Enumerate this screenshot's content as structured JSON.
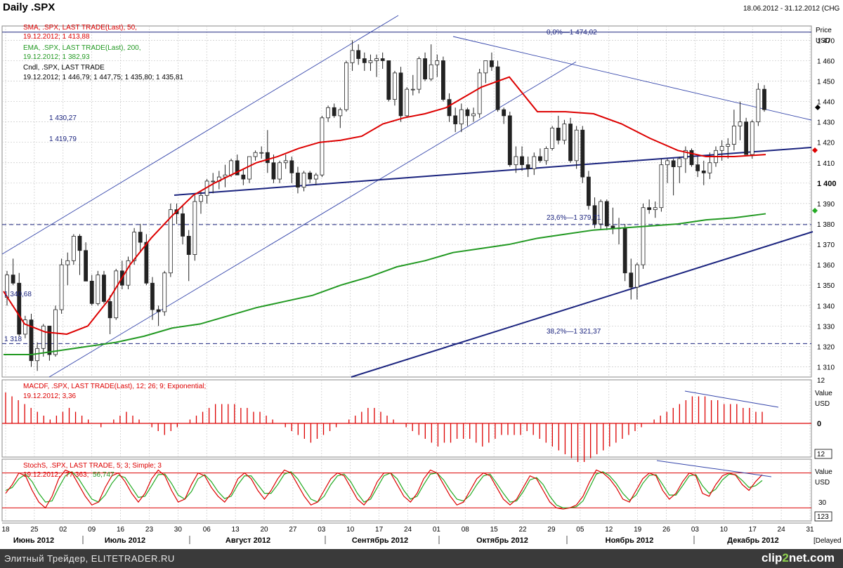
{
  "header": {
    "title": "Daily .SPX",
    "date_range": "18.06.2012 - 31.12.2012 (CHG",
    "price_label": "Price",
    "currency": "USD",
    "delayed": "[Delayed"
  },
  "legend": {
    "sma": {
      "name": "SMA, .SPX, LAST TRADE(Last), 50,",
      "values": "19.12.2012; 1 413,88"
    },
    "ema": {
      "name": "EMA, .SPX, LAST TRADE(Last), 200,",
      "values": "19.12.2012; 1 382,93"
    },
    "cndl": {
      "name": "Cndl, .SPX, LAST TRADE",
      "values": "19.12.2012; 1 446,79; 1 447,75; 1 435,80; 1 435,81"
    }
  },
  "levels": {
    "fib0": "0,0%—1 474,02",
    "fib236": "23,6%—1 379,71",
    "fib382": "38,2%—1 321,37",
    "l1430": "1 430,27",
    "l1419": "1 419,79",
    "l1340": "1 340,68",
    "l1318": "1 318"
  },
  "macd_legend": {
    "name": "MACDF, .SPX, LAST TRADE(Last), 12; 26; 9; Exponential;",
    "values": "19.12.2012; 3,36"
  },
  "stoch_legend": {
    "name": "StochS, .SPX, LAST TRADE, 5; 3; Simple; 3",
    "date": "19.12.2012;",
    "v1": "77,363;",
    "v2": "56,747"
  },
  "macd_axis": {
    "value": "Value",
    "usd": "USD",
    "zero": "0",
    "top": "12",
    "bottom": "12"
  },
  "stoch_axis": {
    "value": "Value",
    "usd": "USD",
    "t30": "30",
    "bottom": "123"
  },
  "footer": {
    "left": "Элитный Трейдер, ELITETRADER.RU",
    "logo_a": "clip",
    "logo_b": "2",
    "logo_c": "net.com"
  },
  "colors": {
    "sma": "#dd0000",
    "ema": "#229922",
    "trend": "#1a237e",
    "channel": "#3344aa",
    "bg": "#ffffff",
    "grid": "#c8c8c8"
  },
  "chart_data": {
    "type": "candlestick",
    "y_ticks": [
      1310,
      1320,
      1330,
      1340,
      1350,
      1360,
      1370,
      1380,
      1390,
      1400,
      1410,
      1420,
      1430,
      1440,
      1450,
      1460,
      1470
    ],
    "ylim": [
      1305,
      1477
    ],
    "x_day_ticks": [
      "18",
      "25",
      "02",
      "09",
      "16",
      "23",
      "30",
      "06",
      "13",
      "20",
      "27",
      "03",
      "10",
      "17",
      "24",
      "01",
      "08",
      "15",
      "22",
      "29",
      "05",
      "12",
      "19",
      "26",
      "03",
      "10",
      "17",
      "24",
      "31"
    ],
    "months": [
      "Июнь 2012",
      "Июль 2012",
      "Август 2012",
      "Сентябрь 2012",
      "Октябрь 2012",
      "Ноябрь 2012",
      "Декабрь 2012"
    ],
    "candles": [
      [
        1344,
        1357,
        1340,
        1355
      ],
      [
        1355,
        1363,
        1350,
        1351
      ],
      [
        1351,
        1356,
        1325,
        1326
      ],
      [
        1326,
        1335,
        1324,
        1333
      ],
      [
        1333,
        1336,
        1310,
        1313
      ],
      [
        1313,
        1322,
        1308,
        1319
      ],
      [
        1319,
        1331,
        1315,
        1330
      ],
      [
        1330,
        1330,
        1313,
        1316
      ],
      [
        1316,
        1340,
        1315,
        1338
      ],
      [
        1338,
        1363,
        1336,
        1360
      ],
      [
        1360,
        1366,
        1350,
        1362
      ],
      [
        1362,
        1375,
        1360,
        1374
      ],
      [
        1374,
        1375,
        1355,
        1367
      ],
      [
        1367,
        1371,
        1352,
        1352
      ],
      [
        1352,
        1355,
        1340,
        1341
      ],
      [
        1341,
        1357,
        1340,
        1355
      ],
      [
        1355,
        1357,
        1341,
        1342
      ],
      [
        1342,
        1345,
        1326,
        1334
      ],
      [
        1334,
        1358,
        1333,
        1357
      ],
      [
        1357,
        1362,
        1348,
        1350
      ],
      [
        1350,
        1364,
        1348,
        1362
      ],
      [
        1362,
        1378,
        1360,
        1376
      ],
      [
        1376,
        1380,
        1366,
        1371
      ],
      [
        1371,
        1375,
        1350,
        1351
      ],
      [
        1351,
        1354,
        1333,
        1338
      ],
      [
        1338,
        1340,
        1330,
        1337
      ],
      [
        1337,
        1357,
        1335,
        1356
      ],
      [
        1356,
        1390,
        1354,
        1387
      ],
      [
        1387,
        1390,
        1380,
        1385
      ],
      [
        1385,
        1389,
        1370,
        1374
      ],
      [
        1374,
        1377,
        1352,
        1365
      ],
      [
        1365,
        1394,
        1362,
        1391
      ],
      [
        1391,
        1396,
        1385,
        1394
      ],
      [
        1394,
        1402,
        1390,
        1401
      ],
      [
        1401,
        1405,
        1395,
        1401
      ],
      [
        1401,
        1406,
        1397,
        1403
      ],
      [
        1403,
        1409,
        1398,
        1404
      ],
      [
        1404,
        1412,
        1403,
        1411
      ],
      [
        1411,
        1414,
        1404,
        1404
      ],
      [
        1404,
        1407,
        1399,
        1402
      ],
      [
        1402,
        1413,
        1400,
        1413
      ],
      [
        1413,
        1416,
        1411,
        1415
      ],
      [
        1415,
        1418,
        1412,
        1415
      ],
      [
        1415,
        1426,
        1405,
        1410
      ],
      [
        1410,
        1414,
        1400,
        1402
      ],
      [
        1402,
        1411,
        1400,
        1410
      ],
      [
        1410,
        1414,
        1407,
        1411
      ],
      [
        1411,
        1413,
        1400,
        1405
      ],
      [
        1405,
        1408,
        1395,
        1398
      ],
      [
        1398,
        1406,
        1396,
        1405
      ],
      [
        1405,
        1406,
        1400,
        1402
      ],
      [
        1402,
        1405,
        1399,
        1404
      ],
      [
        1404,
        1433,
        1403,
        1432
      ],
      [
        1432,
        1438,
        1430,
        1437
      ],
      [
        1437,
        1439,
        1432,
        1433
      ],
      [
        1433,
        1437,
        1427,
        1436
      ],
      [
        1436,
        1460,
        1435,
        1459
      ],
      [
        1459,
        1470,
        1455,
        1465
      ],
      [
        1465,
        1468,
        1458,
        1461
      ],
      [
        1461,
        1464,
        1455,
        1459
      ],
      [
        1459,
        1463,
        1455,
        1460
      ],
      [
        1460,
        1463,
        1452,
        1461
      ],
      [
        1461,
        1464,
        1456,
        1460
      ],
      [
        1460,
        1460,
        1440,
        1441
      ],
      [
        1441,
        1455,
        1438,
        1454
      ],
      [
        1454,
        1457,
        1430,
        1433
      ],
      [
        1433,
        1447,
        1432,
        1446
      ],
      [
        1446,
        1453,
        1443,
        1446
      ],
      [
        1446,
        1462,
        1444,
        1461
      ],
      [
        1461,
        1464,
        1450,
        1451
      ],
      [
        1451,
        1468,
        1450,
        1458
      ],
      [
        1458,
        1463,
        1452,
        1460
      ],
      [
        1460,
        1462,
        1440,
        1441
      ],
      [
        1441,
        1444,
        1430,
        1433
      ],
      [
        1433,
        1437,
        1425,
        1429
      ],
      [
        1429,
        1439,
        1425,
        1436
      ],
      [
        1436,
        1437,
        1428,
        1433
      ],
      [
        1433,
        1437,
        1430,
        1434
      ],
      [
        1434,
        1456,
        1432,
        1454
      ],
      [
        1454,
        1460,
        1449,
        1460
      ],
      [
        1460,
        1464,
        1455,
        1457
      ],
      [
        1457,
        1460,
        1435,
        1436
      ],
      [
        1436,
        1437,
        1429,
        1433
      ],
      [
        1433,
        1435,
        1408,
        1409
      ],
      [
        1409,
        1418,
        1405,
        1413
      ],
      [
        1413,
        1418,
        1406,
        1409
      ],
      [
        1409,
        1413,
        1403,
        1407
      ],
      [
        1407,
        1415,
        1404,
        1413
      ],
      [
        1413,
        1417,
        1410,
        1411
      ],
      [
        1411,
        1418,
        1409,
        1417
      ],
      [
        1417,
        1428,
        1416,
        1427
      ],
      [
        1427,
        1433,
        1419,
        1421
      ],
      [
        1421,
        1431,
        1419,
        1429
      ],
      [
        1429,
        1432,
        1410,
        1411
      ],
      [
        1411,
        1428,
        1407,
        1426
      ],
      [
        1426,
        1428,
        1400,
        1403
      ],
      [
        1403,
        1406,
        1387,
        1389
      ],
      [
        1389,
        1393,
        1378,
        1380
      ],
      [
        1380,
        1392,
        1377,
        1391
      ],
      [
        1391,
        1392,
        1377,
        1379
      ],
      [
        1379,
        1388,
        1375,
        1378
      ],
      [
        1378,
        1383,
        1370,
        1378
      ],
      [
        1378,
        1380,
        1352,
        1356
      ],
      [
        1356,
        1363,
        1343,
        1349
      ],
      [
        1349,
        1361,
        1343,
        1360
      ],
      [
        1360,
        1390,
        1358,
        1388
      ],
      [
        1388,
        1392,
        1385,
        1387
      ],
      [
        1387,
        1391,
        1383,
        1388
      ],
      [
        1388,
        1412,
        1386,
        1409
      ],
      [
        1409,
        1412,
        1400,
        1411
      ],
      [
        1411,
        1412,
        1394,
        1408
      ],
      [
        1408,
        1413,
        1400,
        1412
      ],
      [
        1412,
        1418,
        1405,
        1416
      ],
      [
        1416,
        1417,
        1408,
        1409
      ],
      [
        1409,
        1413,
        1403,
        1406
      ],
      [
        1406,
        1411,
        1399,
        1405
      ],
      [
        1405,
        1415,
        1402,
        1410
      ],
      [
        1410,
        1418,
        1408,
        1416
      ],
      [
        1416,
        1421,
        1411,
        1418
      ],
      [
        1418,
        1422,
        1412,
        1419
      ],
      [
        1419,
        1436,
        1416,
        1428
      ],
      [
        1428,
        1440,
        1421,
        1430
      ],
      [
        1430,
        1432,
        1414,
        1414
      ],
      [
        1414,
        1431,
        1412,
        1430
      ],
      [
        1430,
        1449,
        1428,
        1446
      ],
      [
        1446,
        1448,
        1435,
        1436
      ]
    ],
    "sma50": [
      [
        0,
        1347
      ],
      [
        30,
        1331
      ],
      [
        60,
        1327
      ],
      [
        90,
        1326
      ],
      [
        120,
        1330
      ],
      [
        150,
        1343
      ],
      [
        180,
        1360
      ],
      [
        210,
        1373
      ],
      [
        240,
        1384
      ],
      [
        270,
        1394
      ],
      [
        300,
        1400
      ],
      [
        330,
        1405
      ],
      [
        360,
        1410
      ],
      [
        390,
        1413
      ],
      [
        420,
        1417
      ],
      [
        450,
        1420
      ],
      [
        480,
        1421
      ],
      [
        510,
        1423
      ],
      [
        540,
        1429
      ],
      [
        570,
        1432
      ],
      [
        600,
        1434
      ],
      [
        630,
        1437
      ],
      [
        650,
        1441
      ],
      [
        680,
        1447
      ],
      [
        720,
        1452
      ],
      [
        760,
        1435
      ],
      [
        800,
        1435
      ],
      [
        840,
        1434
      ],
      [
        880,
        1429
      ],
      [
        920,
        1422
      ],
      [
        960,
        1416
      ],
      [
        1000,
        1413
      ],
      [
        1040,
        1413
      ],
      [
        1085,
        1414
      ]
    ],
    "ema200": [
      [
        0,
        1316
      ],
      [
        40,
        1316
      ],
      [
        80,
        1318
      ],
      [
        120,
        1320
      ],
      [
        160,
        1322
      ],
      [
        200,
        1325
      ],
      [
        240,
        1329
      ],
      [
        280,
        1331
      ],
      [
        320,
        1335
      ],
      [
        360,
        1339
      ],
      [
        400,
        1342
      ],
      [
        440,
        1345
      ],
      [
        480,
        1350
      ],
      [
        520,
        1354
      ],
      [
        560,
        1359
      ],
      [
        600,
        1362
      ],
      [
        640,
        1366
      ],
      [
        680,
        1368
      ],
      [
        720,
        1370
      ],
      [
        760,
        1373
      ],
      [
        800,
        1375
      ],
      [
        840,
        1377
      ],
      [
        880,
        1378
      ],
      [
        920,
        1379
      ],
      [
        960,
        1380
      ],
      [
        1000,
        1382
      ],
      [
        1040,
        1383
      ],
      [
        1085,
        1385
      ]
    ],
    "macd_values": [
      8,
      7,
      6,
      5,
      4,
      3,
      2,
      1,
      2,
      3,
      4,
      3,
      2,
      1,
      0,
      -1,
      0,
      1,
      2,
      3,
      2,
      1,
      0,
      -1,
      -2,
      -3,
      -2,
      -1,
      0,
      1,
      2,
      3,
      4,
      5,
      5,
      5,
      5,
      4,
      4,
      3,
      3,
      2,
      1,
      0,
      -1,
      -2,
      -3,
      -4,
      -5,
      -4,
      -3,
      -2,
      -1,
      0,
      1,
      2,
      3,
      4,
      4,
      3,
      2,
      1,
      0,
      -1,
      -2,
      -3,
      -4,
      -5,
      -6,
      -5,
      -5,
      -4,
      -4,
      -4,
      -5,
      -6,
      -5,
      -4,
      -3,
      -3,
      -3,
      -3,
      -2,
      -3,
      -4,
      -5,
      -6,
      -7,
      -8,
      -9,
      -10,
      -10,
      -9,
      -8,
      -7,
      -6,
      -5,
      -4,
      -3,
      -2,
      -1,
      0,
      1,
      2,
      3,
      4,
      5,
      6,
      7,
      7,
      7,
      6,
      6,
      5,
      5,
      5,
      4,
      4,
      3,
      3
    ],
    "stoch_k": [
      45,
      60,
      80,
      75,
      50,
      30,
      20,
      40,
      70,
      85,
      80,
      60,
      40,
      25,
      30,
      55,
      75,
      80,
      65,
      45,
      30,
      45,
      70,
      85,
      75,
      50,
      30,
      35,
      60,
      80,
      75,
      55,
      40,
      30,
      45,
      70,
      80,
      70,
      50,
      35,
      50,
      70,
      85,
      80,
      60,
      40,
      25,
      30,
      50,
      70,
      80,
      75,
      55,
      35,
      25,
      40,
      65,
      80,
      80,
      60,
      40,
      30,
      45,
      70,
      85,
      80,
      60,
      40,
      25,
      30,
      50,
      70,
      80,
      75,
      55,
      35,
      25,
      35,
      55,
      75,
      70,
      50,
      30,
      20,
      18,
      20,
      25,
      40,
      65,
      85,
      80,
      70,
      55,
      35,
      30,
      50,
      70,
      80,
      75,
      50,
      35,
      45,
      65,
      80,
      75,
      45,
      40,
      60,
      75,
      80,
      76,
      60,
      50,
      65,
      77
    ],
    "stoch_d": [
      50,
      55,
      70,
      78,
      65,
      45,
      30,
      32,
      55,
      75,
      82,
      70,
      52,
      35,
      30,
      42,
      62,
      76,
      72,
      55,
      38,
      40,
      58,
      77,
      78,
      62,
      42,
      35,
      48,
      70,
      77,
      65,
      48,
      36,
      40,
      60,
      75,
      75,
      60,
      45,
      45,
      60,
      78,
      82,
      70,
      52,
      35,
      30,
      40,
      60,
      75,
      78,
      65,
      45,
      30,
      35,
      55,
      75,
      80,
      70,
      50,
      35,
      40,
      60,
      78,
      80,
      68,
      50,
      35,
      32,
      42,
      60,
      75,
      78,
      62,
      45,
      30,
      32,
      48,
      68,
      72,
      60,
      40,
      25,
      20,
      20,
      22,
      32,
      55,
      78,
      82,
      75,
      62,
      45,
      33,
      42,
      62,
      76,
      77,
      60,
      42,
      42,
      58,
      75,
      77,
      58,
      45,
      52,
      68,
      78,
      77,
      67,
      55,
      58,
      67
    ]
  }
}
